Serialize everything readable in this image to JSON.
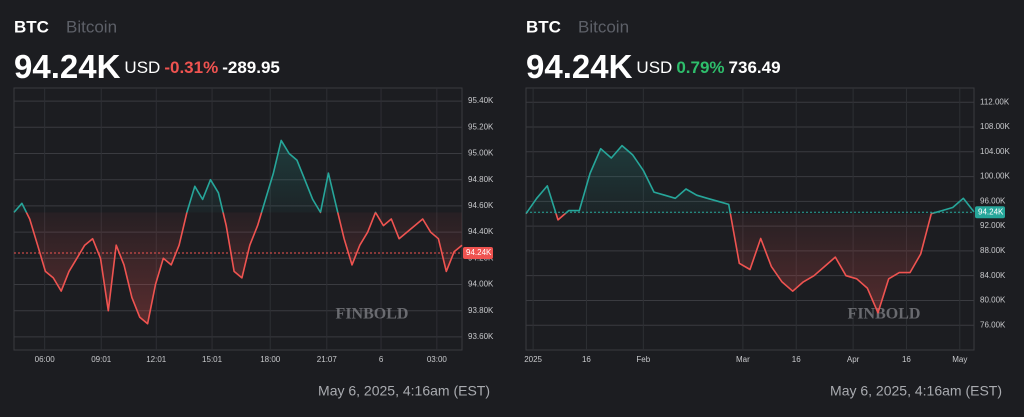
{
  "chart_data": [
    {
      "type": "line",
      "symbol": "BTC",
      "name": "Bitcoin",
      "price": "94.24K",
      "currency": "USD",
      "change_pct": "-0.31%",
      "change": "-289.95",
      "timestamp": "May 6, 2025, 4:16am (EST)",
      "watermark": "FINBOLD",
      "reference": 94240,
      "up_color": "#26a69a",
      "down_color": "#ef5350",
      "values": [
        94550,
        94620,
        94500,
        94300,
        94100,
        94050,
        93950,
        94100,
        94200,
        94300,
        94350,
        94200,
        93800,
        94300,
        94150,
        93900,
        93750,
        93700,
        94000,
        94200,
        94150,
        94300,
        94550,
        94750,
        94650,
        94800,
        94700,
        94450,
        94100,
        94050,
        94300,
        94450,
        94650,
        94850,
        95100,
        95000,
        94950,
        94800,
        94650,
        94550,
        94850,
        94600,
        94350,
        94150,
        94300,
        94400,
        94550,
        94450,
        94500,
        94350,
        94400,
        94450,
        94500,
        94400,
        94350,
        94100,
        94250,
        94300
      ],
      "xlim": [
        0,
        57
      ],
      "xticks": [
        {
          "value": 3.9,
          "label": "06:00"
        },
        {
          "value": 11.1,
          "label": "09:01"
        },
        {
          "value": 18.1,
          "label": "12:01"
        },
        {
          "value": 25.2,
          "label": "15:01"
        },
        {
          "value": 32.6,
          "label": "18:00"
        },
        {
          "value": 39.8,
          "label": "21:07"
        },
        {
          "value": 46.7,
          "label": "6"
        },
        {
          "value": 53.8,
          "label": "03:00"
        }
      ],
      "ylim": [
        93500,
        95500
      ],
      "yticks": [
        {
          "value": 95400,
          "label": "95.40K"
        },
        {
          "value": 95200,
          "label": "95.20K"
        },
        {
          "value": 95000,
          "label": "95.00K"
        },
        {
          "value": 94800,
          "label": "94.80K"
        },
        {
          "value": 94600,
          "label": "94.60K"
        },
        {
          "value": 94400,
          "label": "94.40K"
        },
        {
          "value": 94200,
          "label": "94.20K"
        },
        {
          "value": 94000,
          "label": "94.00K"
        },
        {
          "value": 93800,
          "label": "93.80K"
        },
        {
          "value": 93600,
          "label": "93.60K"
        }
      ],
      "grid": true
    },
    {
      "type": "line",
      "symbol": "BTC",
      "name": "Bitcoin",
      "price": "94.24K",
      "currency": "USD",
      "change_pct": "0.79%",
      "change": "736.49",
      "timestamp": "May 6, 2025, 4:16am (EST)",
      "watermark": "FINBOLD",
      "reference": 94240,
      "up_color": "#26a69a",
      "down_color": "#ef5350",
      "x": [
        -2,
        1,
        4,
        7,
        10,
        13,
        16,
        19,
        22,
        25,
        28,
        31,
        34,
        37,
        40,
        43,
        46,
        49,
        52,
        55,
        58,
        61,
        64,
        67,
        70,
        73,
        76,
        79,
        82,
        85,
        88,
        91,
        94,
        97,
        100,
        103,
        106,
        109,
        112,
        115,
        118,
        121,
        124
      ],
      "values": [
        94000,
        96500,
        98500,
        93000,
        94500,
        94500,
        100500,
        104500,
        103000,
        105000,
        103500,
        101000,
        97500,
        97000,
        96500,
        98000,
        97000,
        96500,
        96000,
        95500,
        86000,
        85000,
        90000,
        85500,
        83000,
        81500,
        83000,
        84000,
        85500,
        87000,
        84000,
        83500,
        82000,
        78000,
        83500,
        84500,
        84500,
        87500,
        94000,
        94500,
        95000,
        96500,
        94300
      ],
      "xlim": [
        -2,
        124
      ],
      "xticks": [
        {
          "value": 0,
          "label": "2025"
        },
        {
          "value": 15,
          "label": "16"
        },
        {
          "value": 31,
          "label": "Feb"
        },
        {
          "value": 59,
          "label": "Mar"
        },
        {
          "value": 74,
          "label": "16"
        },
        {
          "value": 90,
          "label": "Apr"
        },
        {
          "value": 105,
          "label": "16"
        },
        {
          "value": 120,
          "label": "May"
        }
      ],
      "ylim": [
        72000,
        114300
      ],
      "yticks": [
        {
          "value": 112000,
          "label": "112.00K"
        },
        {
          "value": 108000,
          "label": "108.00K"
        },
        {
          "value": 104000,
          "label": "104.00K"
        },
        {
          "value": 100000,
          "label": "100.00K"
        },
        {
          "value": 96000,
          "label": "96.00K"
        },
        {
          "value": 92000,
          "label": "92.00K"
        },
        {
          "value": 88000,
          "label": "88.00K"
        },
        {
          "value": 84000,
          "label": "84.00K"
        },
        {
          "value": 80000,
          "label": "80.00K"
        },
        {
          "value": 76000,
          "label": "76.00K"
        }
      ],
      "grid": true
    }
  ]
}
